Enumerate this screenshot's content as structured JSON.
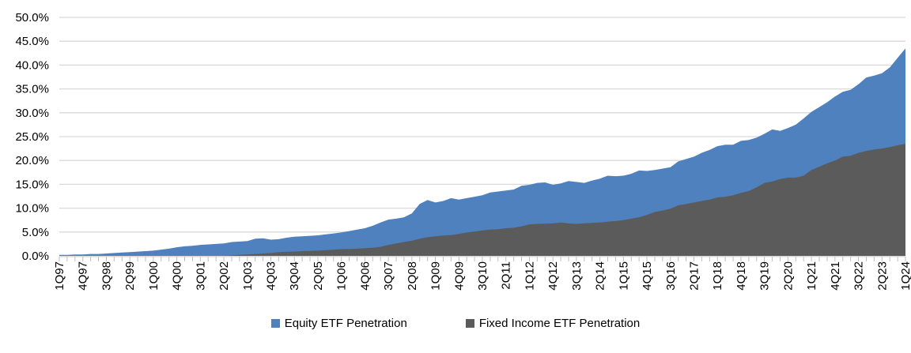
{
  "chart_data": {
    "type": "area",
    "title": "",
    "stacked": false,
    "grid": "horizontal",
    "legend_position": "bottom",
    "x_start": "1Q97",
    "x_end": "1Q24",
    "x_frequency": "quarterly",
    "x_tick_labels": [
      "1Q97",
      "4Q97",
      "3Q98",
      "2Q99",
      "1Q00",
      "4Q00",
      "3Q01",
      "2Q02",
      "1Q03",
      "4Q03",
      "3Q04",
      "2Q05",
      "1Q06",
      "4Q06",
      "3Q07",
      "2Q08",
      "1Q09",
      "4Q09",
      "3Q10",
      "2Q11",
      "1Q12",
      "4Q12",
      "3Q13",
      "2Q14",
      "1Q15",
      "4Q15",
      "3Q16",
      "2Q17",
      "1Q18",
      "4Q18",
      "3Q19",
      "2Q20",
      "1Q21",
      "4Q21",
      "3Q22",
      "2Q23",
      "1Q24"
    ],
    "x_label_every_n_quarters": 3,
    "y_tick_labels": [
      "0.0%",
      "5.0%",
      "10.0%",
      "15.0%",
      "20.0%",
      "25.0%",
      "30.0%",
      "35.0%",
      "40.0%",
      "45.0%",
      "50.0%"
    ],
    "y_tick_step": 5,
    "ylim": [
      0,
      50
    ],
    "legend": [
      "Equity ETF Penetration",
      "Fixed Income ETF Penetration"
    ],
    "colors": {
      "equity": "#4E81BD",
      "fixed_income": "#5B5B5B",
      "gridline": "#D9D9D9",
      "axis_tick": "#BFBFBF",
      "text": "#000000",
      "background": "#FFFFFF"
    },
    "series": [
      {
        "name": "Equity ETF Penetration",
        "color_key": "equity",
        "values": [
          0.2,
          0.2,
          0.3,
          0.3,
          0.4,
          0.4,
          0.5,
          0.6,
          0.7,
          0.8,
          0.9,
          1.0,
          1.1,
          1.3,
          1.5,
          1.8,
          2.0,
          2.1,
          2.3,
          2.4,
          2.5,
          2.6,
          2.9,
          3.0,
          3.1,
          3.6,
          3.7,
          3.4,
          3.5,
          3.8,
          4.0,
          4.1,
          4.2,
          4.3,
          4.5,
          4.7,
          4.9,
          5.2,
          5.5,
          5.8,
          6.3,
          7.0,
          7.6,
          7.8,
          8.1,
          8.9,
          10.9,
          11.7,
          11.2,
          11.5,
          12.1,
          11.8,
          12.1,
          12.4,
          12.7,
          13.3,
          13.5,
          13.7,
          13.9,
          14.7,
          14.9,
          15.3,
          15.4,
          14.9,
          15.2,
          15.7,
          15.5,
          15.3,
          15.8,
          16.2,
          16.8,
          16.7,
          16.8,
          17.2,
          17.9,
          17.8,
          18.0,
          18.3,
          18.6,
          19.8,
          20.3,
          20.8,
          21.6,
          22.2,
          23.0,
          23.3,
          23.3,
          24.1,
          24.3,
          24.8,
          25.6,
          26.5,
          26.2,
          26.8,
          27.5,
          28.8,
          30.2,
          31.2,
          32.2,
          33.4,
          34.4,
          34.8,
          36.0,
          37.4,
          37.8,
          38.3,
          39.5,
          41.5,
          43.5
        ]
      },
      {
        "name": "Fixed Income ETF Penetration",
        "color_key": "fixed_income",
        "values": [
          0,
          0,
          0,
          0,
          0,
          0,
          0,
          0,
          0,
          0,
          0,
          0,
          0,
          0,
          0,
          0,
          0,
          0,
          0,
          0,
          0,
          0,
          0.1,
          0.2,
          0.3,
          0.4,
          0.5,
          0.6,
          0.8,
          0.85,
          0.9,
          1.0,
          1.05,
          1.1,
          1.2,
          1.3,
          1.4,
          1.45,
          1.5,
          1.6,
          1.7,
          1.9,
          2.3,
          2.6,
          2.9,
          3.2,
          3.6,
          3.9,
          4.1,
          4.25,
          4.35,
          4.6,
          4.9,
          5.1,
          5.35,
          5.5,
          5.6,
          5.8,
          5.9,
          6.2,
          6.6,
          6.7,
          6.75,
          6.8,
          7.0,
          6.8,
          6.7,
          6.8,
          6.9,
          7.0,
          7.15,
          7.3,
          7.5,
          7.8,
          8.1,
          8.6,
          9.2,
          9.5,
          9.9,
          10.6,
          10.9,
          11.2,
          11.5,
          11.8,
          12.25,
          12.4,
          12.7,
          13.2,
          13.6,
          14.35,
          15.3,
          15.6,
          16.1,
          16.4,
          16.4,
          16.8,
          18.0,
          18.7,
          19.4,
          20.0,
          20.8,
          21.0,
          21.6,
          22.0,
          22.3,
          22.5,
          22.8,
          23.2,
          23.5
        ]
      }
    ]
  }
}
